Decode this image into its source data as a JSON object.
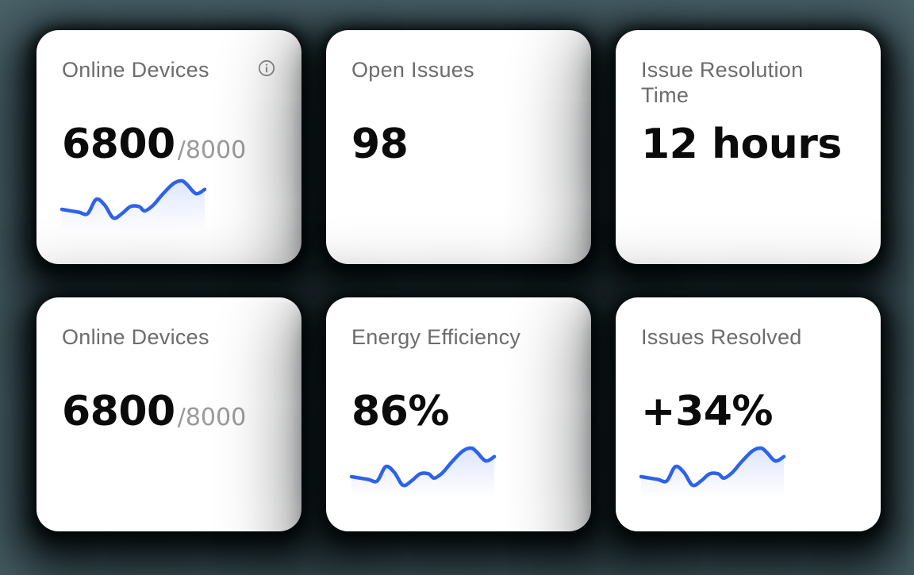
{
  "theme": {
    "bg": "#4B646B",
    "card": "#FFFFFF",
    "title": "#6C6C6C",
    "value": "#0B0B0B",
    "suffix": "#9A9A9A",
    "icon": "#8A8A8A",
    "line": "#2E62E9",
    "fill": "#3B67E9"
  },
  "cards": [
    {
      "title": "Online Devices",
      "value": "6800",
      "suffix": "/8000"
    },
    {
      "title": "Open Issues",
      "value": "98"
    },
    {
      "title": "Issue Resolution Time",
      "value": "12 hours"
    },
    {
      "title": "Online Devices",
      "value": "6800",
      "suffix": "/8000"
    },
    {
      "title": "Energy Efficiency",
      "value": "86%"
    },
    {
      "title": "Issues Resolved",
      "value": "+34%"
    }
  ],
  "chart_data": {
    "type": "area",
    "title": "trend sparkline (unlabeled, no axes)",
    "applies_to_cards": [
      0,
      4,
      5
    ],
    "x": [
      0,
      6,
      12,
      18,
      24,
      30,
      36,
      42,
      48,
      54,
      58,
      64,
      70,
      78,
      84,
      88,
      94,
      100
    ],
    "values": [
      15,
      14,
      13,
      12,
      22,
      18,
      9,
      12,
      17,
      17,
      14,
      18,
      25,
      33,
      35,
      32,
      26,
      29
    ],
    "xlim": [
      0,
      100
    ],
    "ylim": [
      0,
      40
    ],
    "grid": false,
    "legend": false,
    "line_color": "#2E62E9",
    "fill_color": "#3B67E9"
  }
}
